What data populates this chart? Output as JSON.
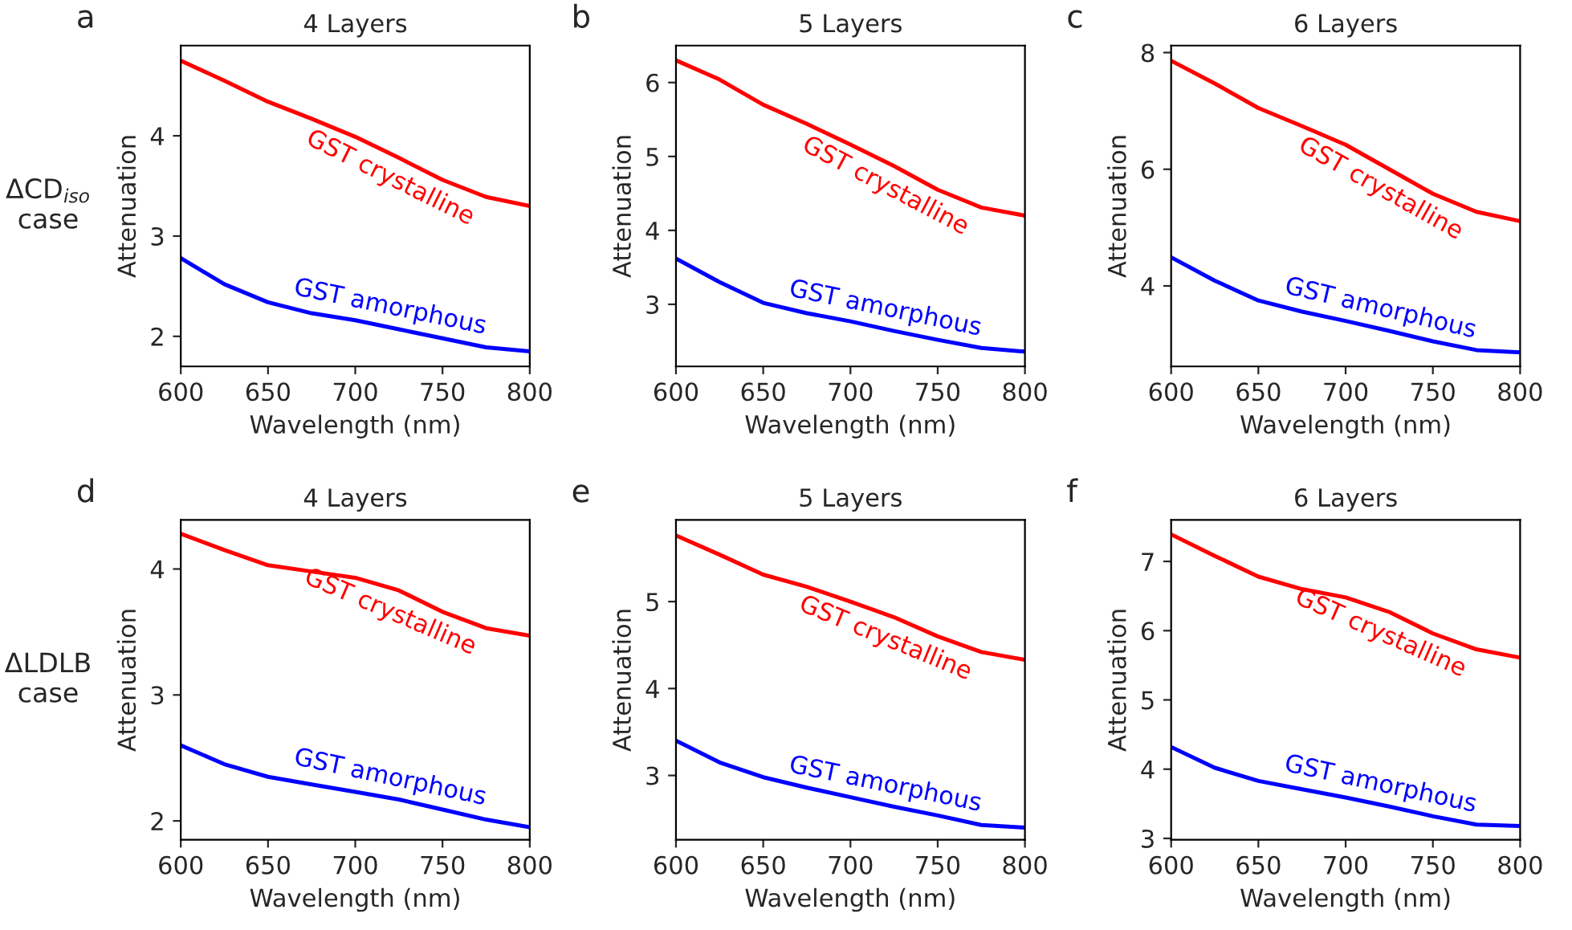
{
  "chart_data": [
    {
      "type": "line",
      "title": "4 Layers",
      "xlabel": "Wavelength (nm)",
      "ylabel": "Attenuation",
      "annotations": [
        "a",
        "ΔCD$_{iso}$\ncase"
      ],
      "x": [
        600,
        625,
        650,
        675,
        700,
        725,
        750,
        775,
        800
      ],
      "xlim": [
        600,
        800
      ],
      "xticks": [
        600,
        650,
        700,
        750,
        800
      ],
      "ylim": [
        1.7,
        4.9
      ],
      "yticks": [
        2,
        3,
        4
      ],
      "grid": false,
      "line_style": "solid",
      "series": [
        {
          "name": "GST crystalline",
          "color": "#ff0000",
          "values": [
            4.75,
            4.55,
            4.34,
            4.17,
            3.99,
            3.78,
            3.56,
            3.39,
            3.3
          ]
        },
        {
          "name": "GST amorphous",
          "color": "#0000ff",
          "values": [
            2.78,
            2.52,
            2.34,
            2.23,
            2.16,
            2.07,
            1.98,
            1.89,
            1.85
          ]
        }
      ]
    },
    {
      "type": "line",
      "title": "5 Layers",
      "xlabel": "Wavelength (nm)",
      "ylabel": "Attenuation",
      "annotations": [
        "b"
      ],
      "x": [
        600,
        625,
        650,
        675,
        700,
        725,
        750,
        775,
        800
      ],
      "xlim": [
        600,
        800
      ],
      "xticks": [
        600,
        650,
        700,
        750,
        800
      ],
      "ylim": [
        2.16,
        6.5
      ],
      "yticks": [
        3,
        4,
        5,
        6
      ],
      "grid": false,
      "line_style": "solid",
      "series": [
        {
          "name": "GST crystalline",
          "color": "#ff0000",
          "values": [
            6.3,
            6.04,
            5.7,
            5.44,
            5.16,
            4.87,
            4.55,
            4.31,
            4.2
          ]
        },
        {
          "name": "GST amorphous",
          "color": "#0000ff",
          "values": [
            3.62,
            3.3,
            3.02,
            2.88,
            2.77,
            2.64,
            2.52,
            2.41,
            2.36
          ]
        }
      ]
    },
    {
      "type": "line",
      "title": "6 Layers",
      "xlabel": "Wavelength (nm)",
      "ylabel": "Attenuation",
      "annotations": [
        "c"
      ],
      "x": [
        600,
        625,
        650,
        675,
        700,
        725,
        750,
        775,
        800
      ],
      "xlim": [
        600,
        800
      ],
      "xticks": [
        600,
        650,
        700,
        750,
        800
      ],
      "ylim": [
        2.62,
        8.12
      ],
      "yticks": [
        4,
        6,
        8
      ],
      "grid": false,
      "line_style": "solid",
      "series": [
        {
          "name": "GST crystalline",
          "color": "#ff0000",
          "values": [
            7.86,
            7.47,
            7.05,
            6.74,
            6.42,
            6.0,
            5.58,
            5.27,
            5.11
          ]
        },
        {
          "name": "GST amorphous",
          "color": "#0000ff",
          "values": [
            4.49,
            4.09,
            3.75,
            3.56,
            3.4,
            3.23,
            3.05,
            2.9,
            2.86
          ]
        }
      ]
    },
    {
      "type": "line",
      "title": "4 Layers",
      "xlabel": "Wavelength (nm)",
      "ylabel": "Attenuation",
      "annotations": [
        "d",
        "ΔLDLB\ncase"
      ],
      "x": [
        600,
        625,
        650,
        675,
        700,
        725,
        750,
        775,
        800
      ],
      "xlim": [
        600,
        800
      ],
      "xticks": [
        600,
        650,
        700,
        750,
        800
      ],
      "ylim": [
        1.85,
        4.39
      ],
      "yticks": [
        2,
        3,
        4
      ],
      "grid": false,
      "line_style": "solid",
      "series": [
        {
          "name": "GST crystalline",
          "color": "#ff0000",
          "values": [
            4.28,
            4.15,
            4.03,
            3.98,
            3.93,
            3.83,
            3.66,
            3.53,
            3.47
          ]
        },
        {
          "name": "GST amorphous",
          "color": "#0000ff",
          "values": [
            2.6,
            2.45,
            2.35,
            2.29,
            2.23,
            2.17,
            2.09,
            2.01,
            1.95
          ]
        }
      ]
    },
    {
      "type": "line",
      "title": "5 Layers",
      "xlabel": "Wavelength (nm)",
      "ylabel": "Attenuation",
      "annotations": [
        "e"
      ],
      "x": [
        600,
        625,
        650,
        675,
        700,
        725,
        750,
        775,
        800
      ],
      "xlim": [
        600,
        800
      ],
      "xticks": [
        600,
        650,
        700,
        750,
        800
      ],
      "ylim": [
        2.26,
        5.94
      ],
      "yticks": [
        3,
        4,
        5
      ],
      "grid": false,
      "line_style": "solid",
      "series": [
        {
          "name": "GST crystalline",
          "color": "#ff0000",
          "values": [
            5.76,
            5.54,
            5.31,
            5.17,
            5.0,
            4.82,
            4.6,
            4.42,
            4.33
          ]
        },
        {
          "name": "GST amorphous",
          "color": "#0000ff",
          "values": [
            3.4,
            3.15,
            2.98,
            2.86,
            2.75,
            2.64,
            2.54,
            2.43,
            2.4
          ]
        }
      ]
    },
    {
      "type": "line",
      "title": "6 Layers",
      "xlabel": "Wavelength (nm)",
      "ylabel": "Attenuation",
      "annotations": [
        "f"
      ],
      "x": [
        600,
        625,
        650,
        675,
        700,
        725,
        750,
        775,
        800
      ],
      "xlim": [
        600,
        800
      ],
      "xticks": [
        600,
        650,
        700,
        750,
        800
      ],
      "ylim": [
        2.98,
        7.6
      ],
      "yticks": [
        3,
        4,
        5,
        6,
        7
      ],
      "grid": false,
      "line_style": "solid",
      "series": [
        {
          "name": "GST crystalline",
          "color": "#ff0000",
          "values": [
            7.39,
            7.08,
            6.78,
            6.6,
            6.48,
            6.27,
            5.96,
            5.73,
            5.61
          ]
        },
        {
          "name": "GST amorphous",
          "color": "#0000ff",
          "values": [
            4.32,
            4.02,
            3.83,
            3.71,
            3.59,
            3.46,
            3.32,
            3.2,
            3.18
          ]
        }
      ]
    }
  ]
}
